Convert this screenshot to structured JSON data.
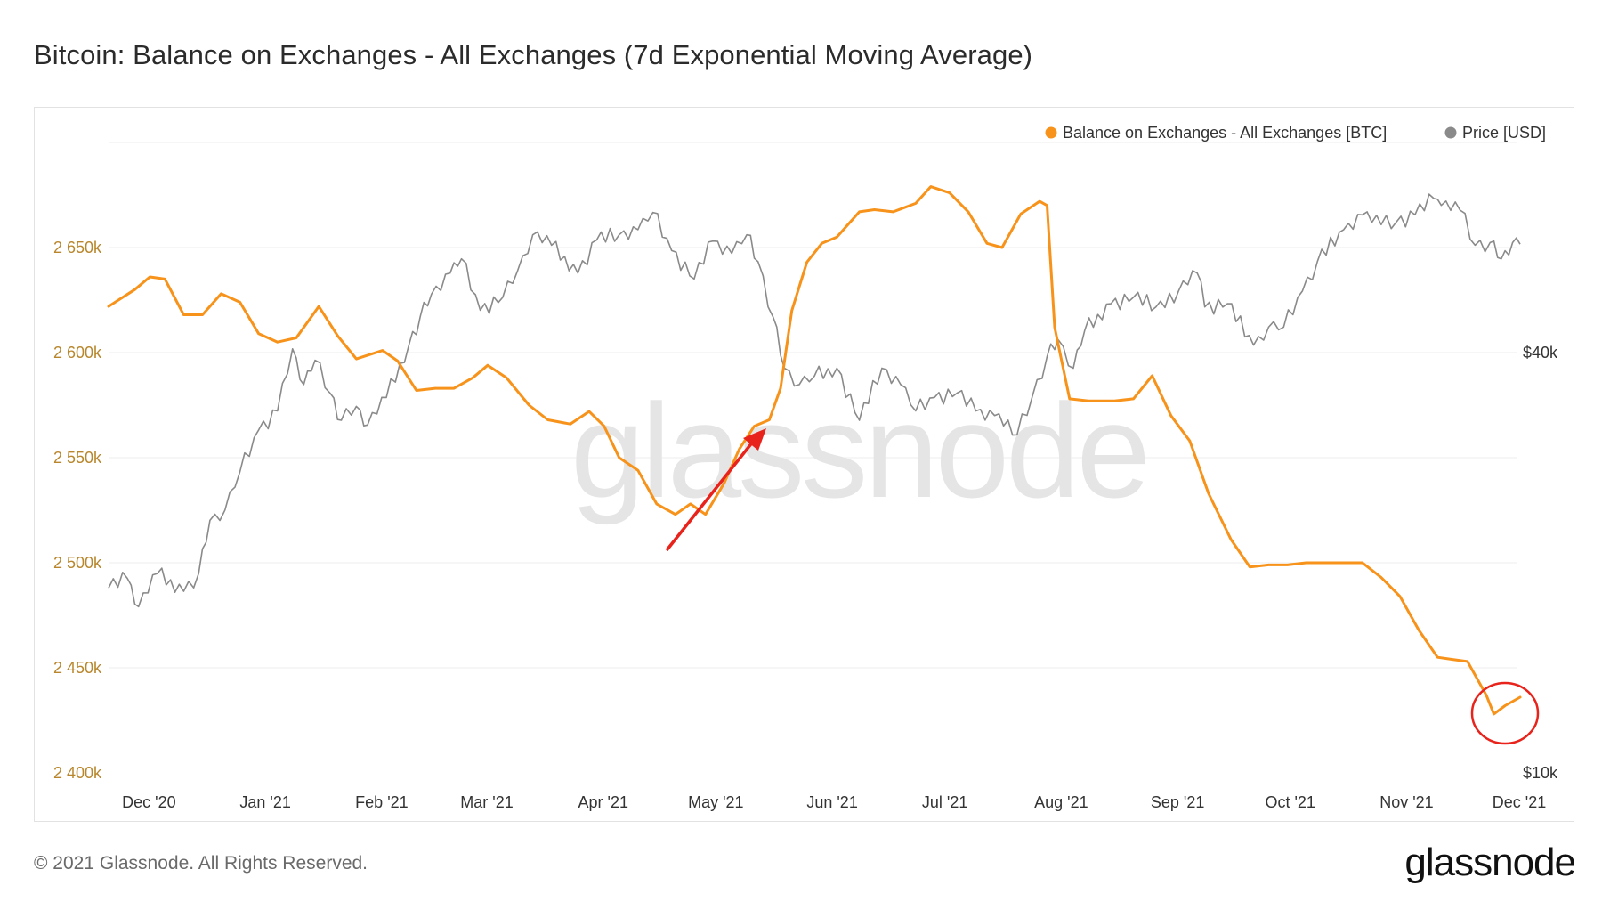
{
  "title": "Bitcoin: Balance on Exchanges - All Exchanges (7d Exponential Moving Average)",
  "footer": "© 2021 Glassnode. All Rights Reserved.",
  "brand": "glassnode",
  "watermark": "glassnode",
  "colors": {
    "balance": "#f7931a",
    "price": "#8a8a8a",
    "left_axis_text": "#b8862c",
    "annotation": "#e8231c",
    "grid": "#eeeeee"
  },
  "chart_data": {
    "type": "line",
    "legend": {
      "placement": "top-right",
      "items": [
        "Balance on Exchanges - All Exchanges [BTC]",
        "Price [USD]"
      ]
    },
    "x_ticks": [
      "Dec '20",
      "Jan '21",
      "Feb '21",
      "Mar '21",
      "Apr '21",
      "May '21",
      "Jun '21",
      "Jul '21",
      "Aug '21",
      "Sep '21",
      "Oct '21",
      "Nov '21",
      "Dec '21"
    ],
    "y_left": {
      "ticks": [
        "2 400k",
        "2 450k",
        "2 500k",
        "2 550k",
        "2 600k",
        "2 650k"
      ],
      "range": [
        2400000,
        2700000
      ]
    },
    "y_right": {
      "ticks": [
        "$10k",
        "$40k"
      ],
      "scale": "log"
    },
    "grid": true,
    "series": [
      {
        "name": "Balance on Exchanges - All Exchanges [BTC]",
        "axis": "left",
        "x": [
          "2020-11-20",
          "2020-11-27",
          "2020-12-01",
          "2020-12-05",
          "2020-12-10",
          "2020-12-15",
          "2020-12-20",
          "2020-12-25",
          "2020-12-30",
          "2021-01-04",
          "2021-01-09",
          "2021-01-15",
          "2021-01-20",
          "2021-01-25",
          "2021-02-01",
          "2021-02-05",
          "2021-02-10",
          "2021-02-15",
          "2021-02-20",
          "2021-02-25",
          "2021-03-01",
          "2021-03-06",
          "2021-03-12",
          "2021-03-17",
          "2021-03-23",
          "2021-03-28",
          "2021-04-01",
          "2021-04-05",
          "2021-04-10",
          "2021-04-15",
          "2021-04-20",
          "2021-04-24",
          "2021-04-28",
          "2021-05-03",
          "2021-05-07",
          "2021-05-11",
          "2021-05-15",
          "2021-05-18",
          "2021-05-21",
          "2021-05-25",
          "2021-05-29",
          "2021-06-02",
          "2021-06-08",
          "2021-06-12",
          "2021-06-17",
          "2021-06-23",
          "2021-06-27",
          "2021-07-02",
          "2021-07-07",
          "2021-07-12",
          "2021-07-16",
          "2021-07-21",
          "2021-07-26",
          "2021-07-28",
          "2021-07-30",
          "2021-08-03",
          "2021-08-08",
          "2021-08-15",
          "2021-08-20",
          "2021-08-25",
          "2021-08-30",
          "2021-09-04",
          "2021-09-09",
          "2021-09-15",
          "2021-09-20",
          "2021-09-25",
          "2021-09-30",
          "2021-10-05",
          "2021-10-10",
          "2021-10-15",
          "2021-10-20",
          "2021-10-25",
          "2021-10-30",
          "2021-11-04",
          "2021-11-09",
          "2021-11-13",
          "2021-11-17",
          "2021-11-22",
          "2021-11-24",
          "2021-11-27",
          "2021-12-01"
        ],
        "y": [
          2622000,
          2630000,
          2636000,
          2635000,
          2618000,
          2618000,
          2628000,
          2624000,
          2609000,
          2605000,
          2607000,
          2622000,
          2608000,
          2597000,
          2601000,
          2596000,
          2582000,
          2583000,
          2583000,
          2588000,
          2594000,
          2588000,
          2575000,
          2568000,
          2566000,
          2572000,
          2565000,
          2550000,
          2544000,
          2528000,
          2523000,
          2528000,
          2523000,
          2538000,
          2554000,
          2565000,
          2568000,
          2583000,
          2620000,
          2643000,
          2652000,
          2655000,
          2667000,
          2668000,
          2667000,
          2671000,
          2679000,
          2676000,
          2667000,
          2652000,
          2650000,
          2666000,
          2672000,
          2670000,
          2612000,
          2578000,
          2577000,
          2577000,
          2578000,
          2589000,
          2570000,
          2558000,
          2533000,
          2511000,
          2498000,
          2499000,
          2499000,
          2500000,
          2500000,
          2500000,
          2500000,
          2493000,
          2484000,
          2468000,
          2455000,
          2454000,
          2453000,
          2437000,
          2428000,
          2432000,
          2436000
        ]
      },
      {
        "name": "Price [USD]",
        "axis": "right",
        "x": [
          "2020-11-20",
          "2020-11-25",
          "2020-11-28",
          "2020-12-03",
          "2020-12-10",
          "2020-12-14",
          "2020-12-17",
          "2020-12-21",
          "2020-12-25",
          "2020-12-30",
          "2021-01-04",
          "2021-01-08",
          "2021-01-11",
          "2021-01-14",
          "2021-01-18",
          "2021-01-21",
          "2021-01-25",
          "2021-01-28",
          "2021-02-02",
          "2021-02-08",
          "2021-02-11",
          "2021-02-14",
          "2021-02-19",
          "2021-02-22",
          "2021-02-27",
          "2021-03-05",
          "2021-03-09",
          "2021-03-13",
          "2021-03-18",
          "2021-03-25",
          "2021-03-30",
          "2021-04-05",
          "2021-04-10",
          "2021-04-14",
          "2021-04-19",
          "2021-04-25",
          "2021-04-30",
          "2021-05-05",
          "2021-05-09",
          "2021-05-12",
          "2021-05-16",
          "2021-05-19",
          "2021-05-23",
          "2021-05-27",
          "2021-06-02",
          "2021-06-08",
          "2021-06-14",
          "2021-06-19",
          "2021-06-23",
          "2021-06-28",
          "2021-07-04",
          "2021-07-09",
          "2021-07-14",
          "2021-07-20",
          "2021-07-24",
          "2021-07-28",
          "2021-07-31",
          "2021-08-04",
          "2021-08-07",
          "2021-08-14",
          "2021-08-20",
          "2021-08-26",
          "2021-09-01",
          "2021-09-06",
          "2021-09-08",
          "2021-09-14",
          "2021-09-21",
          "2021-09-25",
          "2021-09-29",
          "2021-10-04",
          "2021-10-08",
          "2021-10-15",
          "2021-10-20",
          "2021-10-25",
          "2021-10-29",
          "2021-11-03",
          "2021-11-08",
          "2021-11-10",
          "2021-11-15",
          "2021-11-19",
          "2021-11-23",
          "2021-11-26",
          "2021-11-29",
          "2021-12-01"
        ],
        "y": [
          18400,
          19000,
          17300,
          19300,
          18200,
          19300,
          23000,
          23800,
          27000,
          31000,
          33000,
          40500,
          36000,
          39000,
          35000,
          32000,
          33500,
          31500,
          34500,
          41000,
          45000,
          48500,
          52000,
          54500,
          46000,
          48000,
          52500,
          59000,
          57000,
          52000,
          58000,
          59000,
          60000,
          63500,
          56000,
          51000,
          57800,
          55500,
          59000,
          54000,
          45000,
          38000,
          36000,
          37000,
          38000,
          32000,
          38000,
          36000,
          33000,
          34500,
          35000,
          33000,
          32500,
          30500,
          34500,
          39500,
          41700,
          38000,
          43000,
          47000,
          48000,
          46500,
          49000,
          52000,
          46500,
          47000,
          41000,
          43500,
          43500,
          49000,
          54000,
          60000,
          63000,
          61000,
          61500,
          63000,
          66500,
          65000,
          64000,
          57000,
          57500,
          54500,
          57500,
          57200
        ]
      }
    ],
    "annotations": [
      {
        "type": "arrow",
        "color": "red",
        "points_to": "2021-05-07 balance rise"
      },
      {
        "type": "circle",
        "color": "red",
        "around": "late Nov 2021 low"
      }
    ]
  }
}
